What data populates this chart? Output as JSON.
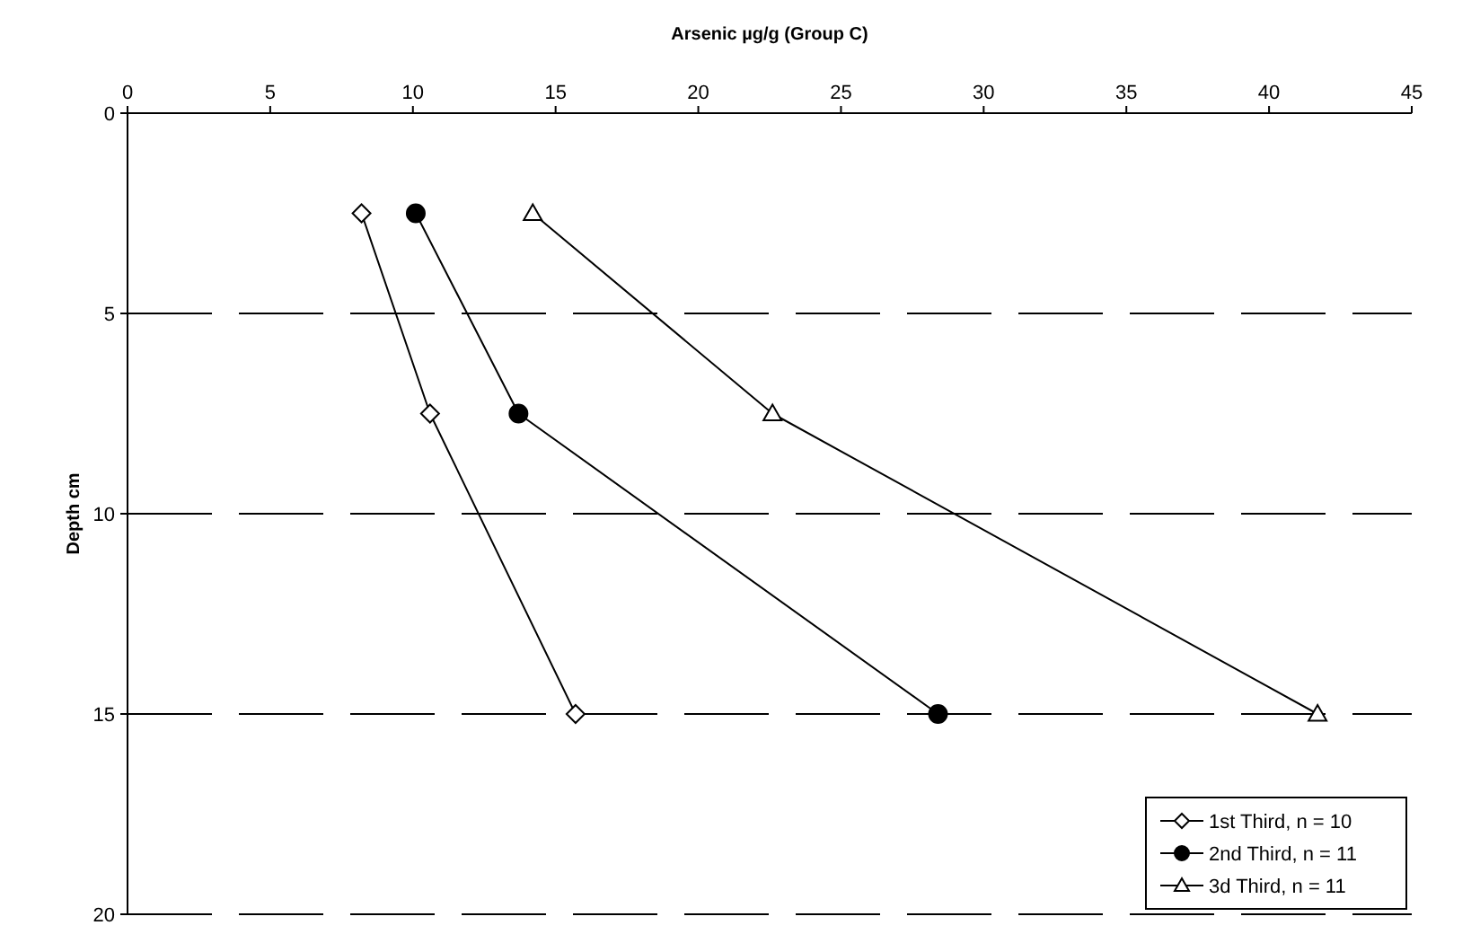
{
  "chart_data": {
    "type": "line",
    "xlabel": "Arsenic µg/g (Group C)",
    "ylabel": "Depth cm",
    "xlim": [
      0,
      45
    ],
    "xticks": [
      0,
      5,
      10,
      15,
      20,
      25,
      30,
      35,
      40,
      45
    ],
    "ylim": [
      20,
      0
    ],
    "yticks": [
      0,
      5,
      10,
      15,
      20
    ],
    "grid": "y",
    "legend": "bottom right",
    "line_style": "solid",
    "series": [
      {
        "name": "1st Third, n = 10",
        "color": "#000000",
        "marker": "diamond",
        "x": [
          8.2,
          10.6,
          15.7
        ],
        "values": [
          2.5,
          7.5,
          15
        ]
      },
      {
        "name": "2nd Third, n = 11",
        "color": "#000000",
        "marker": "circle",
        "x": [
          10.1,
          13.7,
          28.4
        ],
        "values": [
          2.5,
          7.5,
          15
        ]
      },
      {
        "name": "3d Third, n = 11",
        "color": "#000000",
        "marker": "triangle",
        "x": [
          14.2,
          22.6,
          41.7
        ],
        "values": [
          2.5,
          7.5,
          15
        ]
      }
    ]
  }
}
